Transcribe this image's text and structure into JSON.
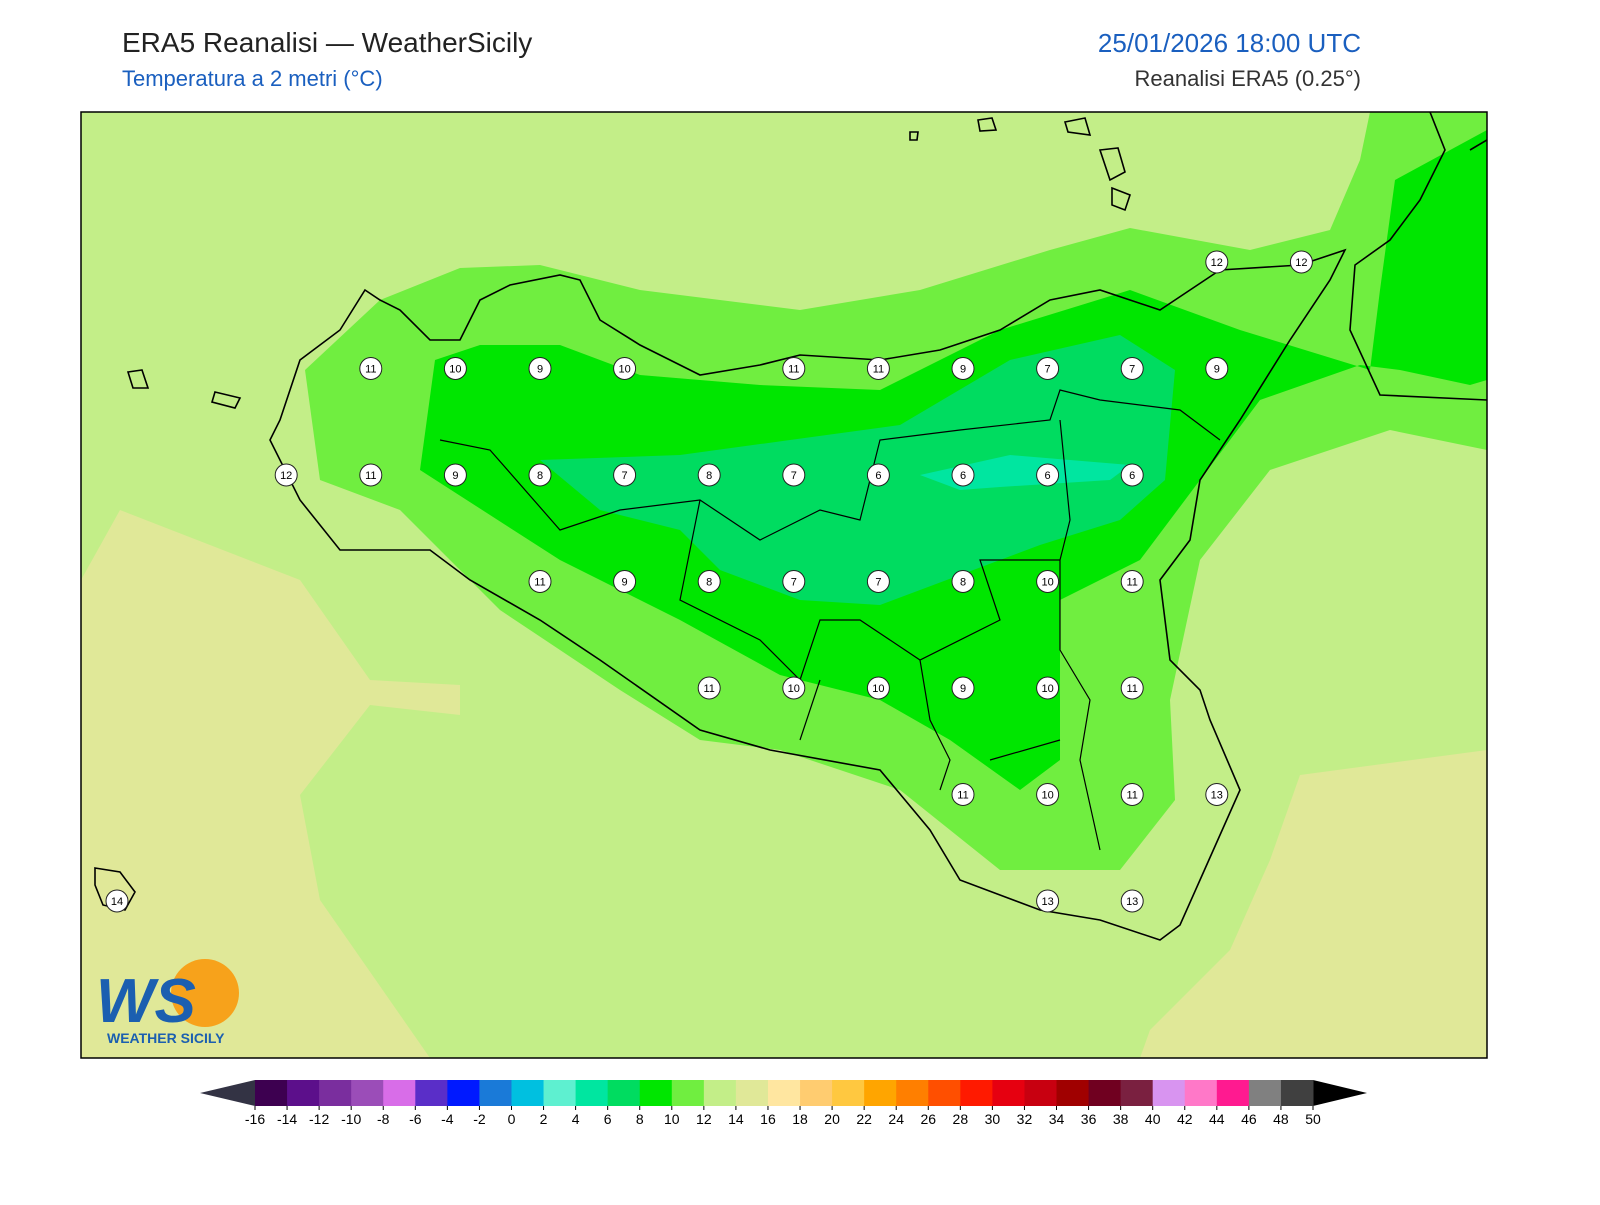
{
  "header": {
    "title": "ERA5 Reanalisi — WeatherSicily",
    "subtitle": "Temperatura a 2 metri (°C)",
    "date": "25/01/2026 18:00 UTC",
    "source": "Reanalisi ERA5 (0.25°)"
  },
  "stations": [
    [
      null,
      null,
      null,
      null,
      null,
      null,
      null,
      null,
      null,
      null,
      null,
      null,
      null,
      12,
      12
    ],
    [
      null,
      null,
      null,
      11,
      10,
      9,
      10,
      null,
      11,
      11,
      9,
      7,
      7,
      9,
      null
    ],
    [
      null,
      null,
      12,
      11,
      9,
      8,
      7,
      8,
      7,
      6,
      6,
      6,
      6,
      null,
      null
    ],
    [
      null,
      null,
      null,
      null,
      null,
      11,
      9,
      8,
      7,
      7,
      8,
      10,
      11,
      null,
      null
    ],
    [
      null,
      null,
      null,
      null,
      null,
      null,
      null,
      11,
      10,
      10,
      9,
      10,
      11,
      null,
      null
    ],
    [
      null,
      null,
      null,
      null,
      null,
      null,
      null,
      null,
      null,
      null,
      11,
      10,
      11,
      13,
      null
    ],
    [
      14,
      null,
      null,
      null,
      null,
      null,
      null,
      null,
      null,
      null,
      null,
      13,
      13,
      null,
      null
    ]
  ],
  "colorbar": {
    "ticks": [
      -16,
      -14,
      -12,
      -10,
      -8,
      -6,
      -4,
      -2,
      0,
      2,
      4,
      6,
      8,
      10,
      12,
      14,
      16,
      18,
      20,
      22,
      24,
      26,
      28,
      30,
      32,
      34,
      36,
      38,
      40,
      42,
      44,
      46,
      48,
      50
    ],
    "colors": [
      "#3d0050",
      "#5c0f8b",
      "#7a2e9e",
      "#9b4db8",
      "#d86de8",
      "#5a2ec8",
      "#0019ff",
      "#1a7ad8",
      "#00c0e0",
      "#5ef0d0",
      "#00e6a0",
      "#00dc60",
      "#00e600",
      "#70ee40",
      "#c3ee88",
      "#e0e898",
      "#ffe6a0",
      "#ffcc70",
      "#ffc840",
      "#ffa500",
      "#ff7f00",
      "#ff4f00",
      "#ff1a00",
      "#e60010",
      "#c80010",
      "#a00000",
      "#700020",
      "#7a2040",
      "#d894f0",
      "#ff78c8",
      "#ff1a90",
      "#808080",
      "#404040"
    ],
    "under_color": "#333344",
    "over_color": "#000000"
  },
  "logo": {
    "text": "WS",
    "caption": "WEATHER SICILY"
  }
}
